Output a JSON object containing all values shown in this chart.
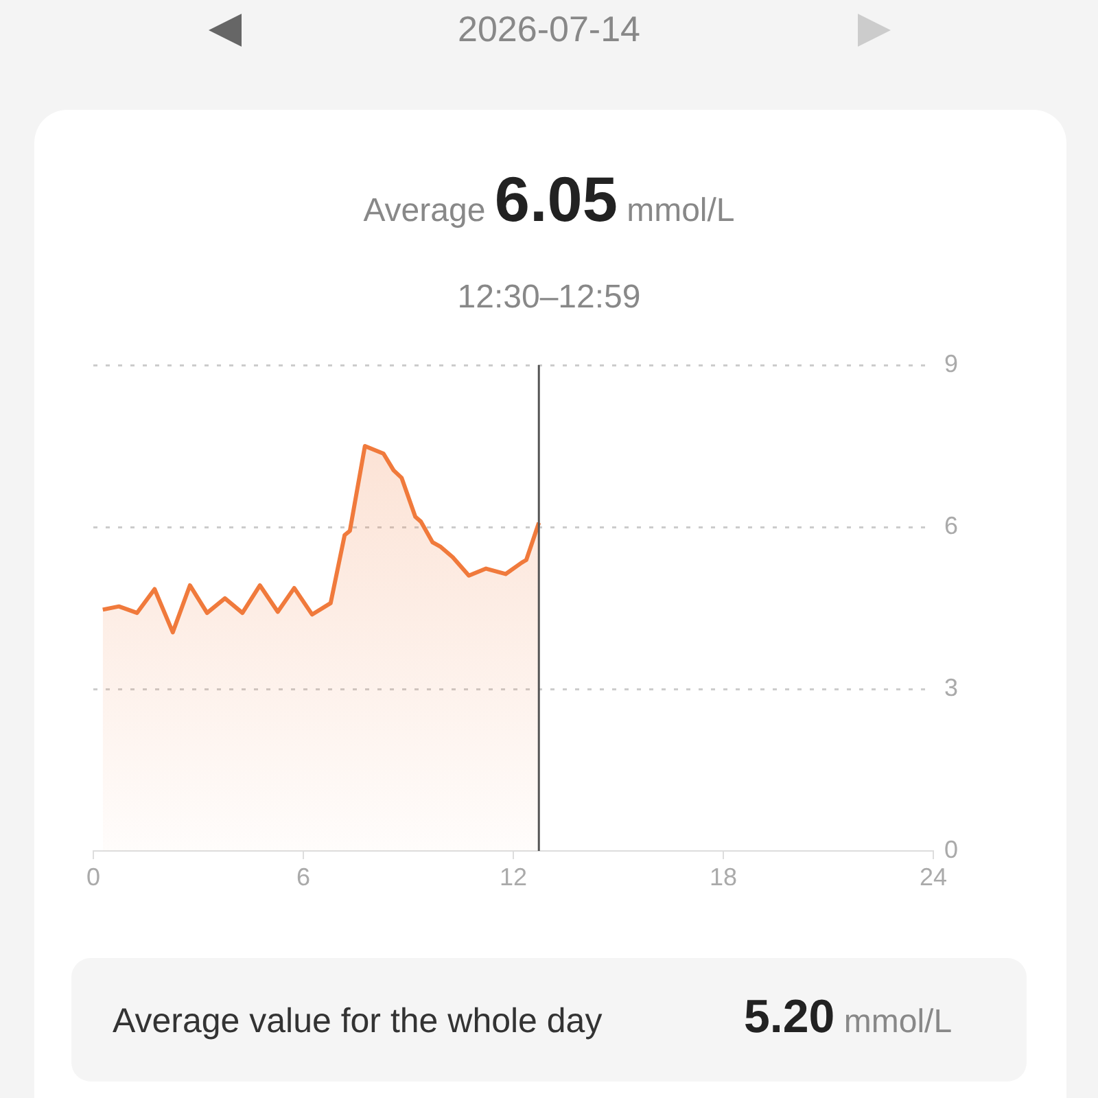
{
  "chart_data": {
    "type": "area",
    "annotations": [
      "2026-07-14",
      "Average",
      "6.05",
      "mmol/L",
      "12:30–12:59",
      "Average value for the whole day",
      "5.20",
      "mmol/L"
    ],
    "x": [
      0.27,
      0.73,
      1.25,
      1.75,
      2.27,
      2.76,
      3.25,
      3.76,
      4.26,
      4.76,
      5.27,
      5.74,
      6.25,
      6.78,
      7.18,
      7.33,
      7.76,
      8.29,
      8.58,
      8.81,
      9.2,
      9.36,
      9.69,
      9.91,
      10.27,
      10.73,
      11.22,
      11.78,
      12.24,
      12.37,
      12.73
    ],
    "series": [
      {
        "color": "#f07a3c",
        "values": [
          4.47,
          4.53,
          4.41,
          4.85,
          4.05,
          4.92,
          4.41,
          4.68,
          4.41,
          4.92,
          4.43,
          4.87,
          4.38,
          4.59,
          5.85,
          5.93,
          7.5,
          7.36,
          7.05,
          6.91,
          6.19,
          6.1,
          5.72,
          5.64,
          5.44,
          5.1,
          5.23,
          5.13,
          5.34,
          5.39,
          6.08
        ]
      }
    ],
    "xlim": [
      0,
      24
    ],
    "xticks": [
      0,
      6,
      12,
      18,
      24
    ],
    "ylim": [
      0,
      9
    ],
    "yticks": [
      0,
      3,
      6,
      9
    ],
    "grid": "y",
    "legend": false,
    "marker": "none",
    "line_style": "solid",
    "ref_lines": [
      {
        "axis": "x",
        "value": 12.73,
        "color": "#555555"
      }
    ]
  }
}
